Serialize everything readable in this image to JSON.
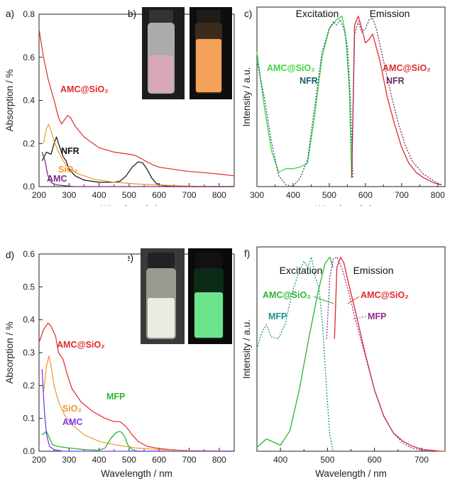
{
  "panels": {
    "a": {
      "letter": "a)"
    },
    "b": {
      "letter": "b)"
    },
    "c": {
      "letter": "c)"
    },
    "d": {
      "letter": "d)"
    },
    "e": {
      "letter": "e)"
    },
    "f": {
      "letter": "f)"
    }
  },
  "colors": {
    "amc_sio2": "#e0292b",
    "nfr": "#111111",
    "sio2": "#f0962a",
    "amc": "#7a2c86",
    "amc_blue": "#7a3cf0",
    "mfp_green": "#2bb52b",
    "exc_green": "#3fd43f",
    "nfr_teal": "#1d5a72",
    "nfr_purple": "#6a2a68",
    "mfp_teal": "#1f8f90",
    "mfp_purple": "#8e2c8e",
    "vial_b_fluor": "#f3a25a",
    "vial_e_fluor": "#6be48c"
  },
  "chart_data": [
    {
      "id": "a",
      "type": "line",
      "xlabel": "Wavelength / nm",
      "ylabel": "Absorption / %",
      "xlim": [
        200,
        850
      ],
      "ylim": [
        0,
        0.8
      ],
      "xticks": [
        200,
        300,
        400,
        500,
        600,
        700,
        800
      ],
      "yticks": [
        0.0,
        0.2,
        0.4,
        0.6,
        0.8
      ],
      "tick_labels_x": [
        "200",
        "300",
        "400",
        "500",
        "600",
        "700",
        "800"
      ],
      "tick_labels_y": [
        "0.0",
        "0.2",
        "0.4",
        "0.6",
        "0.8"
      ],
      "series": [
        {
          "name": "AMC@SiO2",
          "label": "AMC@SiO₂",
          "color_key": "amc_sio2",
          "x": [
            200,
            215,
            230,
            250,
            265,
            275,
            285,
            295,
            305,
            320,
            350,
            400,
            450,
            500,
            520,
            540,
            560,
            580,
            600,
            650,
            700,
            750,
            800,
            850
          ],
          "y": [
            0.73,
            0.6,
            0.5,
            0.4,
            0.32,
            0.29,
            0.31,
            0.33,
            0.32,
            0.28,
            0.23,
            0.18,
            0.16,
            0.15,
            0.145,
            0.13,
            0.115,
            0.1,
            0.09,
            0.08,
            0.07,
            0.065,
            0.058,
            0.05
          ]
        },
        {
          "name": "NFR",
          "label": "NFR",
          "color_key": "nfr",
          "x": [
            210,
            225,
            240,
            250,
            258,
            265,
            272,
            280,
            290,
            300,
            320,
            350,
            400,
            450,
            470,
            490,
            510,
            530,
            545,
            560,
            575,
            590,
            610,
            650,
            850
          ],
          "y": [
            0.12,
            0.16,
            0.15,
            0.2,
            0.23,
            0.2,
            0.17,
            0.14,
            0.12,
            0.08,
            0.05,
            0.03,
            0.02,
            0.02,
            0.025,
            0.05,
            0.09,
            0.115,
            0.11,
            0.08,
            0.04,
            0.015,
            0.005,
            0.0,
            0.0
          ]
        },
        {
          "name": "SiO2",
          "label": "SiO₂",
          "color_key": "sio2",
          "x": [
            215,
            225,
            232,
            240,
            250,
            265,
            280,
            300,
            330,
            380,
            450,
            550,
            650,
            750,
            850
          ],
          "y": [
            0.2,
            0.27,
            0.29,
            0.26,
            0.21,
            0.16,
            0.12,
            0.085,
            0.06,
            0.035,
            0.02,
            0.01,
            0.005,
            0.0,
            0.0
          ]
        },
        {
          "name": "AMC",
          "label": "AMC",
          "color_key": "amc",
          "x": [
            210,
            220,
            228,
            235,
            245,
            260,
            280,
            320,
            400,
            850
          ],
          "y": [
            0.16,
            0.12,
            0.06,
            0.03,
            0.015,
            0.008,
            0.005,
            0.0,
            0.0,
            0.0
          ]
        }
      ]
    },
    {
      "id": "c",
      "type": "line",
      "xlabel": "Wavelength / nm",
      "ylabel": "Intensity / a.u.",
      "xlim": [
        300,
        820
      ],
      "ylim": [
        0,
        1
      ],
      "xticks": [
        300,
        400,
        500,
        600,
        700,
        800
      ],
      "tick_labels_x": [
        "300",
        "400",
        "500",
        "600",
        "700",
        "800"
      ],
      "headings": {
        "excitation": "Excitation",
        "emission": "Emission"
      },
      "series": [
        {
          "name": "AMC@SiO2 excitation",
          "label": "AMC@SiO₂",
          "color_key": "exc_green",
          "x": [
            300,
            320,
            340,
            360,
            380,
            400,
            420,
            440,
            460,
            480,
            500,
            520,
            535,
            545,
            555,
            562
          ],
          "y": [
            0.75,
            0.45,
            0.2,
            0.08,
            0.1,
            0.1,
            0.11,
            0.13,
            0.4,
            0.72,
            0.88,
            0.93,
            0.95,
            0.85,
            0.55,
            0.05
          ]
        },
        {
          "name": "NFR excitation",
          "label": "NFR",
          "color_key": "nfr_teal",
          "x": [
            300,
            320,
            340,
            360,
            380,
            400,
            420,
            440,
            460,
            480,
            500,
            512,
            520,
            530,
            540,
            550,
            558,
            565
          ],
          "y": [
            0.7,
            0.5,
            0.25,
            0.06,
            0.01,
            0.0,
            0.05,
            0.15,
            0.45,
            0.75,
            0.88,
            0.92,
            0.9,
            0.93,
            0.88,
            0.78,
            0.5,
            0.05
          ]
        },
        {
          "name": "AMC@SiO2 emission",
          "label": "AMC@SiO₂",
          "color_key": "amc_sio2",
          "x": [
            562,
            570,
            580,
            590,
            600,
            610,
            620,
            640,
            660,
            680,
            700,
            720,
            740,
            760,
            790,
            810
          ],
          "y": [
            0.05,
            0.9,
            0.95,
            0.88,
            0.8,
            0.82,
            0.85,
            0.7,
            0.5,
            0.35,
            0.22,
            0.13,
            0.08,
            0.05,
            0.02,
            0.01
          ]
        },
        {
          "name": "NFR emission",
          "label": "NFR",
          "color_key": "nfr_purple",
          "x": [
            562,
            570,
            580,
            590,
            600,
            610,
            620,
            630,
            650,
            670,
            690,
            710,
            730,
            760,
            790,
            810
          ],
          "y": [
            0.05,
            0.85,
            0.92,
            0.86,
            0.88,
            0.93,
            0.94,
            0.88,
            0.7,
            0.52,
            0.36,
            0.23,
            0.14,
            0.07,
            0.03,
            0.01
          ]
        }
      ]
    },
    {
      "id": "d",
      "type": "line",
      "xlabel": "Wavelength / nm",
      "ylabel": "Absorption / %",
      "xlim": [
        200,
        850
      ],
      "ylim": [
        0,
        0.6
      ],
      "xticks": [
        200,
        300,
        400,
        500,
        600,
        700,
        800
      ],
      "yticks": [
        0.0,
        0.1,
        0.2,
        0.3,
        0.4,
        0.5,
        0.6
      ],
      "tick_labels_x": [
        "200",
        "300",
        "400",
        "500",
        "600",
        "700",
        "800"
      ],
      "tick_labels_y": [
        "0.0",
        "0.1",
        "0.2",
        "0.3",
        "0.4",
        "0.5",
        "0.6"
      ],
      "series": [
        {
          "name": "AMC@SiO2",
          "label": "AMC@SiO₂",
          "color_key": "amc_sio2",
          "x": [
            200,
            215,
            230,
            240,
            255,
            265,
            280,
            295,
            310,
            340,
            380,
            420,
            450,
            470,
            490,
            510,
            530,
            560,
            600,
            650,
            700,
            850
          ],
          "y": [
            0.33,
            0.37,
            0.39,
            0.38,
            0.35,
            0.3,
            0.28,
            0.23,
            0.19,
            0.15,
            0.12,
            0.1,
            0.09,
            0.09,
            0.075,
            0.05,
            0.03,
            0.015,
            0.008,
            0.004,
            0.002,
            0.0
          ]
        },
        {
          "name": "SiO2",
          "label": "SiO₂",
          "color_key": "sio2",
          "x": [
            215,
            225,
            233,
            240,
            250,
            265,
            285,
            310,
            350,
            400,
            450,
            520,
            600,
            700,
            850
          ],
          "y": [
            0.18,
            0.26,
            0.29,
            0.26,
            0.2,
            0.15,
            0.11,
            0.08,
            0.05,
            0.03,
            0.02,
            0.01,
            0.005,
            0.002,
            0.0
          ]
        },
        {
          "name": "MFP",
          "label": "MFP",
          "color_key": "mfp_green",
          "x": [
            210,
            225,
            235,
            245,
            260,
            300,
            350,
            400,
            420,
            440,
            455,
            465,
            475,
            485,
            495,
            510,
            530,
            850
          ],
          "y": [
            0.05,
            0.06,
            0.04,
            0.02,
            0.015,
            0.01,
            0.005,
            0.003,
            0.01,
            0.04,
            0.055,
            0.06,
            0.058,
            0.045,
            0.02,
            0.005,
            0.0,
            0.0
          ]
        },
        {
          "name": "AMC",
          "label": "AMC",
          "color_key": "amc_blue",
          "x": [
            210,
            218,
            225,
            235,
            250,
            280,
            850
          ],
          "y": [
            0.25,
            0.12,
            0.05,
            0.015,
            0.005,
            0.0,
            0.0
          ]
        }
      ]
    },
    {
      "id": "f",
      "type": "line",
      "xlabel": "Wavelength / nm",
      "ylabel": "Intensity / a.u.",
      "xlim": [
        350,
        750
      ],
      "ylim": [
        0,
        1
      ],
      "xticks": [
        400,
        500,
        600,
        700
      ],
      "tick_labels_x": [
        "400",
        "500",
        "600",
        "700"
      ],
      "headings": {
        "excitation": "Excitation",
        "emission": "Emission"
      },
      "series": [
        {
          "name": "AMC@SiO2 excitation",
          "label": "AMC@SiO₂",
          "color_key": "mfp_green",
          "x": [
            350,
            360,
            370,
            380,
            390,
            400,
            420,
            440,
            460,
            480,
            495,
            505,
            512
          ],
          "y": [
            0.02,
            0.04,
            0.06,
            0.05,
            0.04,
            0.03,
            0.1,
            0.3,
            0.55,
            0.78,
            0.92,
            0.95,
            0.9
          ]
        },
        {
          "name": "MFP excitation",
          "label": "MFP",
          "color_key": "mfp_teal",
          "x": [
            350,
            360,
            370,
            380,
            395,
            410,
            425,
            440,
            450,
            458,
            466,
            474,
            482,
            490,
            498,
            505,
            512
          ],
          "y": [
            0.5,
            0.58,
            0.62,
            0.56,
            0.55,
            0.62,
            0.78,
            0.88,
            0.93,
            0.9,
            0.95,
            0.85,
            0.8,
            0.6,
            0.3,
            0.08,
            0.0
          ]
        },
        {
          "name": "AMC@SiO2 emission",
          "label": "AMC@SiO₂",
          "color_key": "amc_sio2",
          "x": [
            515,
            520,
            528,
            535,
            545,
            560,
            580,
            600,
            620,
            640,
            660,
            680,
            700,
            720,
            740,
            750
          ],
          "y": [
            0.55,
            0.9,
            0.95,
            0.92,
            0.82,
            0.68,
            0.48,
            0.3,
            0.17,
            0.09,
            0.05,
            0.025,
            0.01,
            0.005,
            0.0,
            0.0
          ]
        },
        {
          "name": "MFP emission",
          "label": "MFP",
          "color_key": "mfp_purple",
          "x": [
            498,
            505,
            512,
            520,
            530,
            545,
            560,
            580,
            600,
            620,
            640,
            660,
            680,
            700,
            720
          ],
          "y": [
            0.55,
            0.85,
            0.94,
            0.95,
            0.9,
            0.78,
            0.64,
            0.47,
            0.3,
            0.17,
            0.09,
            0.04,
            0.015,
            0.005,
            0.0
          ]
        }
      ]
    }
  ]
}
